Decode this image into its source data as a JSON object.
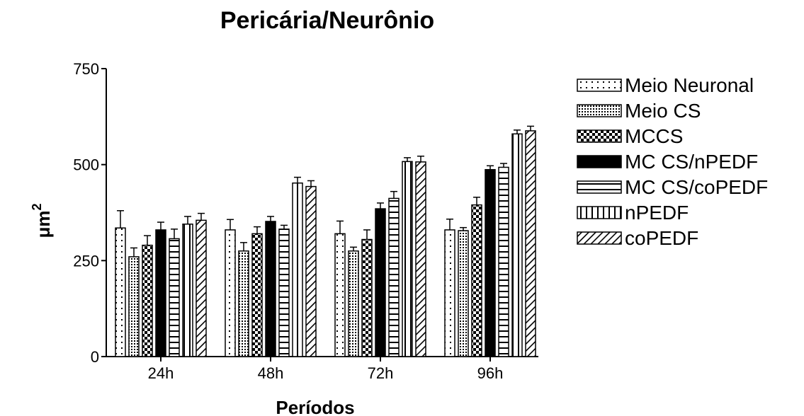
{
  "chart_data": {
    "type": "bar",
    "title": "Pericária/Neurônio",
    "xlabel": "Períodos",
    "ylabel": "μm",
    "ylabel_superscript": "2",
    "categories": [
      "24h",
      "48h",
      "72h",
      "96h"
    ],
    "yticks": [
      0,
      250,
      500,
      750
    ],
    "ylim": [
      0,
      750
    ],
    "grid": false,
    "legend_position": "right",
    "series": [
      {
        "name": "Meio Neuronal",
        "pattern": "dots-sparse",
        "values": [
          335,
          330,
          320,
          330
        ],
        "errors": [
          45,
          27,
          33,
          28
        ]
      },
      {
        "name": "Meio CS",
        "pattern": "dots-dense",
        "values": [
          260,
          275,
          275,
          328
        ],
        "errors": [
          23,
          22,
          10,
          8
        ]
      },
      {
        "name": "MCCS",
        "pattern": "checker",
        "values": [
          290,
          320,
          305,
          395
        ],
        "errors": [
          25,
          18,
          25,
          20
        ]
      },
      {
        "name": "MC CS/nPEDF",
        "pattern": "solid",
        "values": [
          330,
          352,
          385,
          487
        ],
        "errors": [
          20,
          13,
          15,
          10
        ]
      },
      {
        "name": "MC CS/coPEDF",
        "pattern": "horizontal",
        "values": [
          307,
          332,
          412,
          493
        ],
        "errors": [
          25,
          10,
          18,
          10
        ]
      },
      {
        "name": "nPEDF",
        "pattern": "vertical",
        "values": [
          345,
          452,
          508,
          580
        ],
        "errors": [
          20,
          15,
          10,
          10
        ]
      },
      {
        "name": "coPEDF",
        "pattern": "diagonal",
        "values": [
          355,
          443,
          507,
          588
        ],
        "errors": [
          18,
          15,
          15,
          12
        ]
      }
    ]
  }
}
